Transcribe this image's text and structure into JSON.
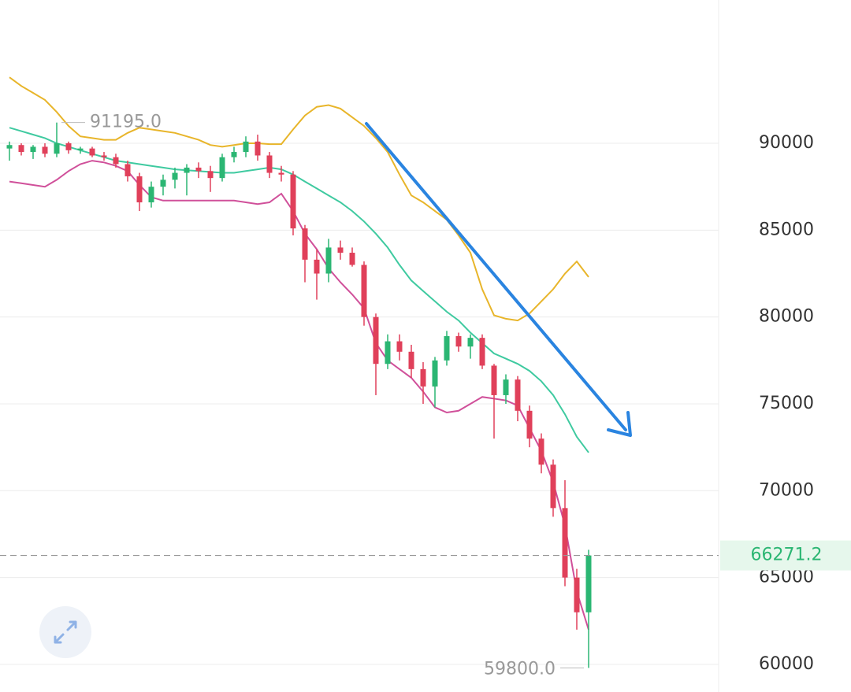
{
  "chart_data": {
    "type": "candlestick",
    "ylim": [
      59000,
      98250
    ],
    "yticks": [
      60000,
      65000,
      70000,
      75000,
      80000,
      85000,
      90000
    ],
    "grid": true,
    "up_color": "#2bb673",
    "down_color": "#e0405a",
    "open": [
      89700,
      89900,
      89500,
      89800,
      89400,
      90000,
      89600,
      89700,
      89300,
      89200,
      88800,
      88100,
      86600,
      87500,
      87900,
      88300,
      88600,
      88400,
      88000,
      89200,
      89500,
      90100,
      89300,
      88300,
      88200,
      85100,
      83300,
      82500,
      84000,
      83700,
      83000,
      80000,
      77300,
      78600,
      78000,
      77000,
      76000,
      77500,
      78900,
      78300,
      78800,
      77200,
      75500,
      76400,
      74600,
      73000,
      71500,
      69000,
      65000,
      63000
    ],
    "high": [
      90100,
      90000,
      89900,
      90000,
      91195,
      90100,
      89800,
      89800,
      89500,
      89400,
      89000,
      88300,
      87800,
      88200,
      88600,
      88800,
      88900,
      88700,
      89400,
      89800,
      90400,
      90500,
      89500,
      88700,
      88400,
      85300,
      83900,
      84500,
      84400,
      84000,
      83200,
      80200,
      79000,
      79000,
      78400,
      77400,
      77700,
      79200,
      79100,
      79000,
      79000,
      77300,
      76700,
      76600,
      74900,
      73300,
      71800,
      70600,
      65500,
      66600
    ],
    "low": [
      89000,
      89300,
      89100,
      89200,
      89200,
      89400,
      89400,
      89200,
      89000,
      88600,
      87800,
      86100,
      86300,
      87000,
      87400,
      87000,
      88000,
      87200,
      87800,
      88900,
      89200,
      89000,
      88000,
      87800,
      84700,
      82000,
      81000,
      82000,
      83300,
      82900,
      79500,
      75500,
      77000,
      77500,
      76500,
      75000,
      74800,
      77200,
      78000,
      77600,
      77000,
      73000,
      75000,
      74000,
      72500,
      71000,
      68500,
      64500,
      62000,
      59800
    ],
    "close": [
      89900,
      89500,
      89800,
      89400,
      90000,
      89600,
      89700,
      89300,
      89200,
      88800,
      88100,
      86600,
      87500,
      87900,
      88300,
      88600,
      88400,
      88000,
      89200,
      89500,
      90100,
      89300,
      88300,
      88200,
      85100,
      83300,
      82500,
      84000,
      83700,
      83000,
      80000,
      77300,
      78600,
      78000,
      77000,
      76000,
      77500,
      78900,
      78300,
      78800,
      77200,
      75500,
      76400,
      74600,
      73000,
      71500,
      69000,
      65000,
      63000,
      66271.2
    ],
    "bands": [
      {
        "color": "#e8b52a",
        "values": [
          93800,
          93300,
          92900,
          92500,
          91800,
          91000,
          90400,
          90300,
          90200,
          90200,
          90600,
          90900,
          90800,
          90700,
          90600,
          90400,
          90200,
          89900,
          89800,
          89900,
          90000,
          90000,
          89950,
          89950,
          90800,
          91600,
          92100,
          92200,
          92000,
          91500,
          91000,
          90300,
          89500,
          88200,
          87000,
          86600,
          86100,
          85600,
          84700,
          83700,
          81600,
          80100,
          79900,
          79800,
          80200,
          80900,
          81600,
          82500,
          83200,
          82300
        ]
      },
      {
        "color": "#3fcaa0",
        "values": [
          90900,
          90700,
          90500,
          90300,
          90000,
          89800,
          89600,
          89400,
          89200,
          89000,
          88900,
          88800,
          88700,
          88600,
          88500,
          88450,
          88400,
          88350,
          88300,
          88300,
          88400,
          88500,
          88600,
          88500,
          88200,
          87800,
          87400,
          87000,
          86600,
          86100,
          85500,
          84800,
          84000,
          83000,
          82100,
          81500,
          80900,
          80300,
          79800,
          79100,
          78500,
          77900,
          77600,
          77300,
          76900,
          76300,
          75500,
          74400,
          73100,
          72200
        ]
      },
      {
        "color": "#d0509a",
        "values": [
          87800,
          87700,
          87600,
          87500,
          87900,
          88400,
          88800,
          89000,
          88900,
          88700,
          88400,
          87600,
          86900,
          86700,
          86700,
          86700,
          86700,
          86700,
          86700,
          86700,
          86600,
          86500,
          86600,
          87100,
          86100,
          84800,
          83900,
          82800,
          82000,
          81300,
          80500,
          78500,
          77500,
          77000,
          76500,
          75700,
          74800,
          74500,
          74600,
          75000,
          75400,
          75300,
          75200,
          74900,
          73600,
          72300,
          70500,
          68000,
          64200,
          62000
        ]
      }
    ],
    "high_marker": {
      "value": 91195,
      "label": "91195.0"
    },
    "low_marker": {
      "value": 59800,
      "label": "59800.0"
    },
    "last_price": 66271.2
  }
}
